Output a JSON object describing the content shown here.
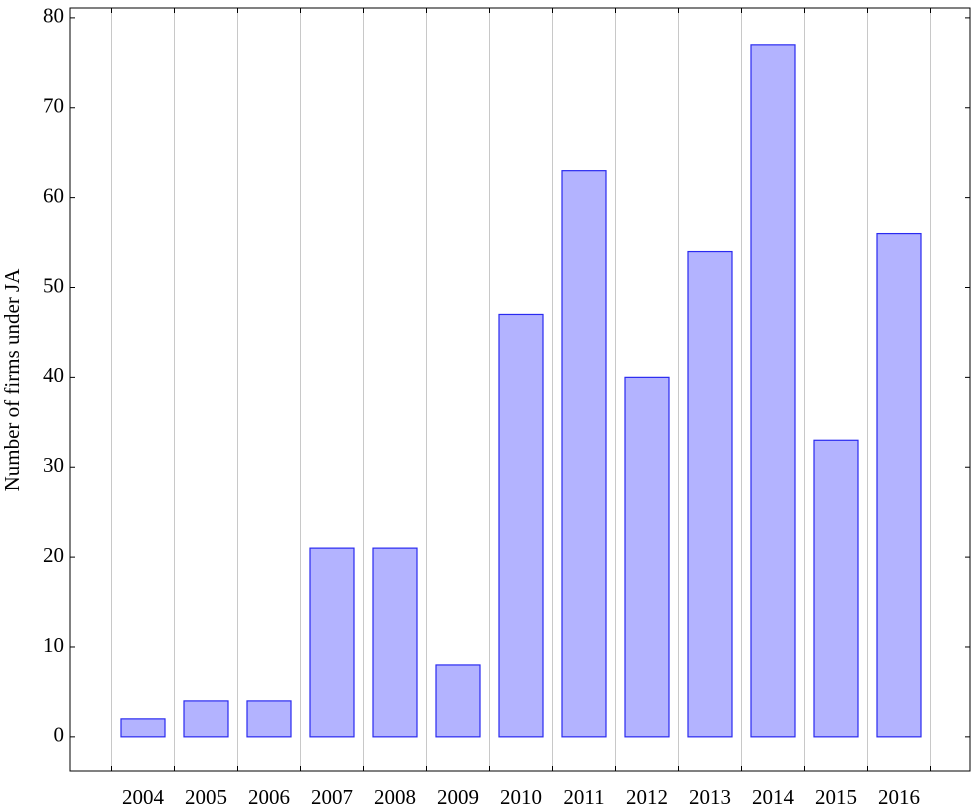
{
  "chart_data": {
    "type": "bar",
    "y_label": "Number of firms under JA",
    "categories": [
      "2004",
      "2005",
      "2006",
      "2007",
      "2008",
      "2009",
      "2010",
      "2011",
      "2012",
      "2013",
      "2014",
      "2015",
      "2016"
    ],
    "values": [
      2,
      4,
      4,
      21,
      21,
      8,
      47,
      63,
      40,
      54,
      77,
      33,
      56
    ],
    "color": "#b3b3ff",
    "edge_color": "#2a2af0",
    "ylim": [
      -3.8,
      81.1
    ],
    "yticks": [
      0,
      10,
      20,
      30,
      40,
      50,
      60,
      70,
      80
    ],
    "grid": "x"
  }
}
